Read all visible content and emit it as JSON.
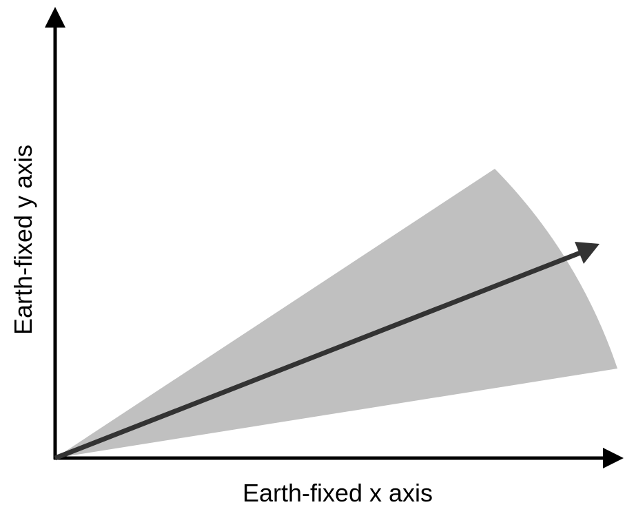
{
  "diagram": {
    "x_axis_label": "Earth-fixed x axis",
    "y_axis_label": "Earth-fixed y axis",
    "colors": {
      "axes": "#000000",
      "cone_fill": "#c0c0c0",
      "direction_arrow": "#333333",
      "background": "#ffffff"
    }
  }
}
